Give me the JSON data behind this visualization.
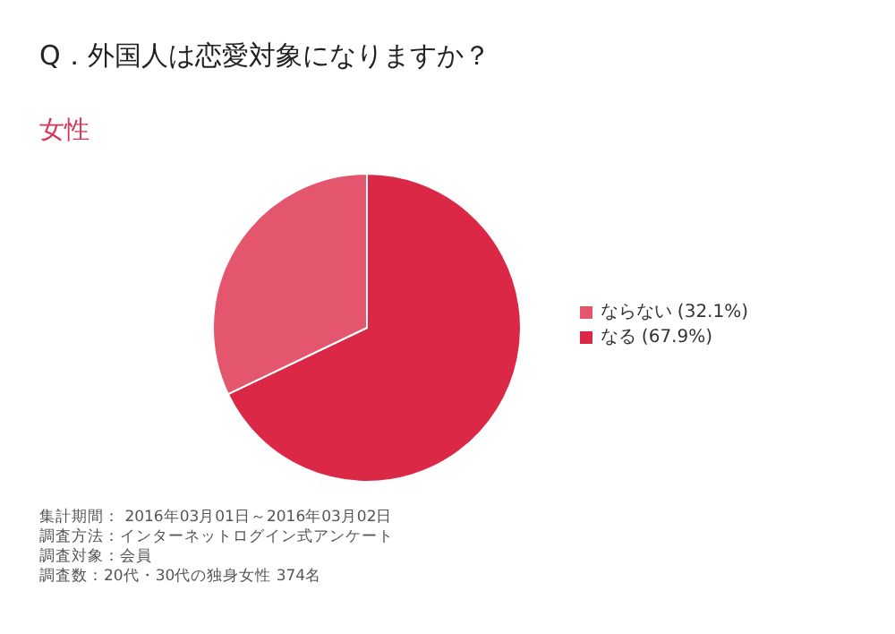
{
  "chart_data": {
    "type": "pie",
    "title": "Q．外国人は恋愛対象になりますか？",
    "subtitle": "女性",
    "categories": [
      "なる (67.9%)",
      "ならない (32.1%)"
    ],
    "values": [
      67.9,
      32.1
    ],
    "colors": [
      "#dc2847",
      "#e4566d"
    ],
    "legend": "right",
    "annotations": [
      "集計期間： 2016年03月01日～2016年03月02日",
      "調査方法：インターネットログイン式アンケート",
      "調査対象：会員",
      "調査数：20代・30代の独身女性 374名"
    ]
  }
}
